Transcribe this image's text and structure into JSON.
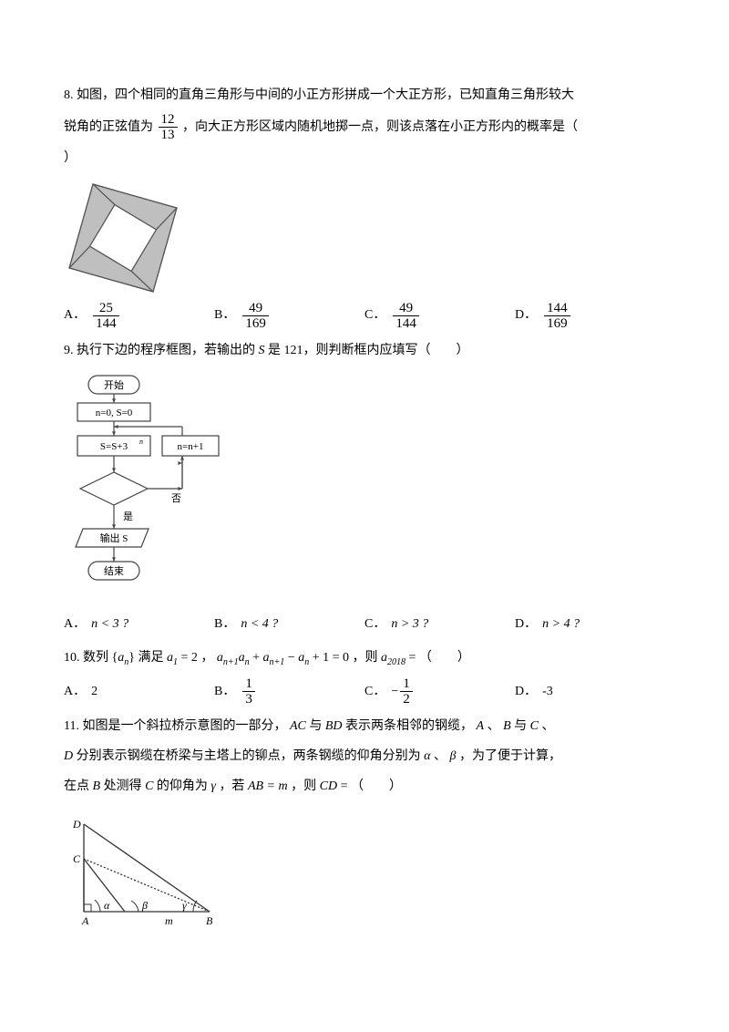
{
  "q8": {
    "number": "8.",
    "text1": "如图，四个相同的直角三角形与中间的小正方形拼成一个大正方形，已知直角三角形较大",
    "text2_a": "锐角的正弦值为",
    "frac_num": "12",
    "frac_den": "13",
    "text2_b": "，向大正方形区域内随机地掷一点，则该点落在小正方形内的概率是（",
    "text3": "）",
    "figure": {
      "bg": "#e8e8e8",
      "outer_stroke": "#555",
      "inner_fill": "#ffffff",
      "tri_fill": "#bfbfbf",
      "size": 130
    },
    "options": [
      {
        "letter": "A．",
        "num": "25",
        "den": "144"
      },
      {
        "letter": "B．",
        "num": "49",
        "den": "169"
      },
      {
        "letter": "C．",
        "num": "49",
        "den": "144"
      },
      {
        "letter": "D．",
        "num": "144",
        "den": "169"
      }
    ]
  },
  "q9": {
    "number": "9.",
    "text": "执行下边的程序框图，若输出的 S 是 121，则判断框内应填写（　　）",
    "flow": {
      "start": "开始",
      "init": "n=0, S=0",
      "proc": "S=S+3",
      "proc_sup": "n",
      "inc": "n=n+1",
      "yes": "是",
      "no": "否",
      "out": "输出 S",
      "end": "结束",
      "stroke": "#444",
      "fill": "#fff",
      "text_color": "#000",
      "font_size": 11
    },
    "options": [
      {
        "letter": "A．",
        "math": "n < 3 ?"
      },
      {
        "letter": "B．",
        "math": "n < 4 ?"
      },
      {
        "letter": "C．",
        "math": "n > 3 ?"
      },
      {
        "letter": "D．",
        "math": "n > 4 ?"
      }
    ]
  },
  "q10": {
    "number": "10.",
    "text_a": "数列",
    "seq": "{aₙ}",
    "text_b": "满足",
    "a1": "a₁ = 2",
    "comma1": "，",
    "rec_lhs": "aₙ₊₁aₙ + aₙ₊₁ − aₙ + 1 = 0",
    "text_c": "，则",
    "a2018_label": "a",
    "a2018_sub": "2018",
    "eq": " = （　　）",
    "options": {
      "A_letter": "A．",
      "A": "2",
      "B_letter": "B．",
      "B_num": "1",
      "B_den": "3",
      "C_letter": "C．",
      "C_neg": "−",
      "C_num": "1",
      "C_den": "2",
      "D_letter": "D．",
      "D": "-3"
    }
  },
  "q11": {
    "number": "11.",
    "line1_a": "如图是一个斜拉桥示意图的一部分，",
    "AC": "AC",
    "line1_b": " 与 ",
    "BD": "BD",
    "line1_c": " 表示两条相邻的钢缆，",
    "A": "A",
    "B": "B",
    "line1_d": " 与 ",
    "C": "C",
    "line1_e": " 、",
    "D": "D",
    "line2_a": " 分别表示钢缆在桥梁与主塔上的铆点，两条钢缆的仰角分别为 ",
    "alpha": "α",
    "beta": "β",
    "line2_b": " ，为了便于计算，",
    "line3_a": "在点 ",
    "line3_b": " 处测得 ",
    "line3_c": " 的仰角为 ",
    "gamma": "γ",
    "line3_d": " ，若 ",
    "ABm": "AB = m",
    "line3_e": " ，则 ",
    "CD": "CD",
    "line3_f": " = （　　）",
    "figure": {
      "stroke": "#333",
      "label_font": 12,
      "m": "m"
    }
  }
}
